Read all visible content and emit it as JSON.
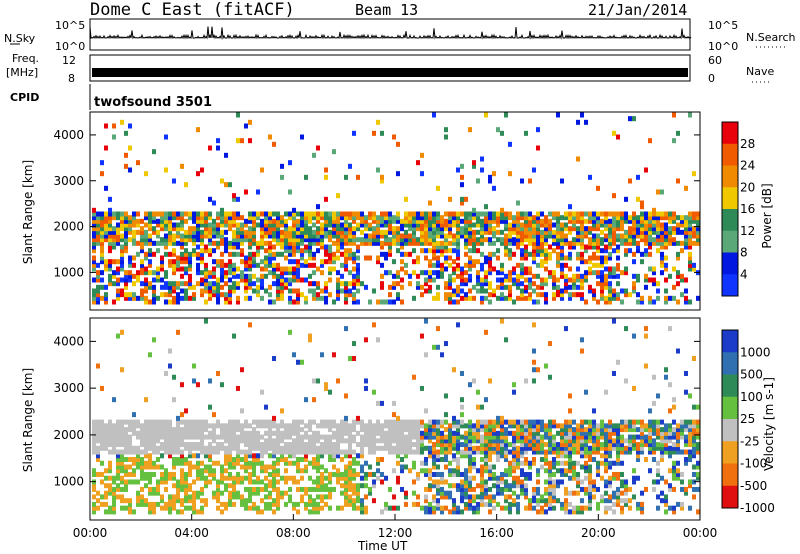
{
  "header": {
    "title": "Dome C East (fitACF)",
    "beam": "Beam 13",
    "date": "21/Jan/2014"
  },
  "nsky_panel": {
    "left_label": "N.Sky",
    "left_ticks": [
      "10^5",
      "10^0"
    ],
    "right_label": "N.Search",
    "right_ticks": [
      "10^5",
      "10^0"
    ]
  },
  "freq_panel": {
    "left_label_line1": "Freq.",
    "left_label_line2": "[MHz]",
    "left_ticks": [
      "12",
      "8"
    ],
    "right_label": "Nave",
    "right_ticks": [
      "60",
      "0"
    ]
  },
  "cpid": {
    "label": "CPID",
    "value": "twofsound 3501"
  },
  "chart_data": [
    {
      "type": "heatmap",
      "name": "power",
      "ylabel": "Slant Range [km]",
      "xlabel": "",
      "ylim": [
        180,
        4500
      ],
      "y_ticks": [
        "1000",
        "2000",
        "3000",
        "4000"
      ],
      "colorbar": {
        "label": "Power [dB]",
        "ticks": [
          "28",
          "24",
          "20",
          "16",
          "12",
          "8",
          "4"
        ],
        "colors": [
          "#e8000b",
          "#f05a00",
          "#f08a00",
          "#f0c800",
          "#2e8b57",
          "#5aa878",
          "#0018e0",
          "#1034ff"
        ]
      },
      "grid": false
    },
    {
      "type": "heatmap",
      "name": "velocity",
      "ylabel": "Slant Range [km]",
      "xlabel": "Time UT",
      "ylim": [
        180,
        4500
      ],
      "y_ticks": [
        "1000",
        "2000",
        "3000",
        "4000"
      ],
      "x_ticks": [
        "00:00",
        "04:00",
        "08:00",
        "12:00",
        "16:00",
        "20:00",
        "00:00"
      ],
      "colorbar": {
        "label": "Velocity [m s-1]",
        "ticks": [
          "1000",
          "500",
          "100",
          "25",
          "-25",
          "-100",
          "-500",
          "-1000"
        ],
        "colors": [
          "#1a3cc8",
          "#3070b0",
          "#2e8b57",
          "#66c040",
          "#c0c0c0",
          "#f0a020",
          "#f07010",
          "#e01010"
        ]
      },
      "grid": false
    }
  ]
}
